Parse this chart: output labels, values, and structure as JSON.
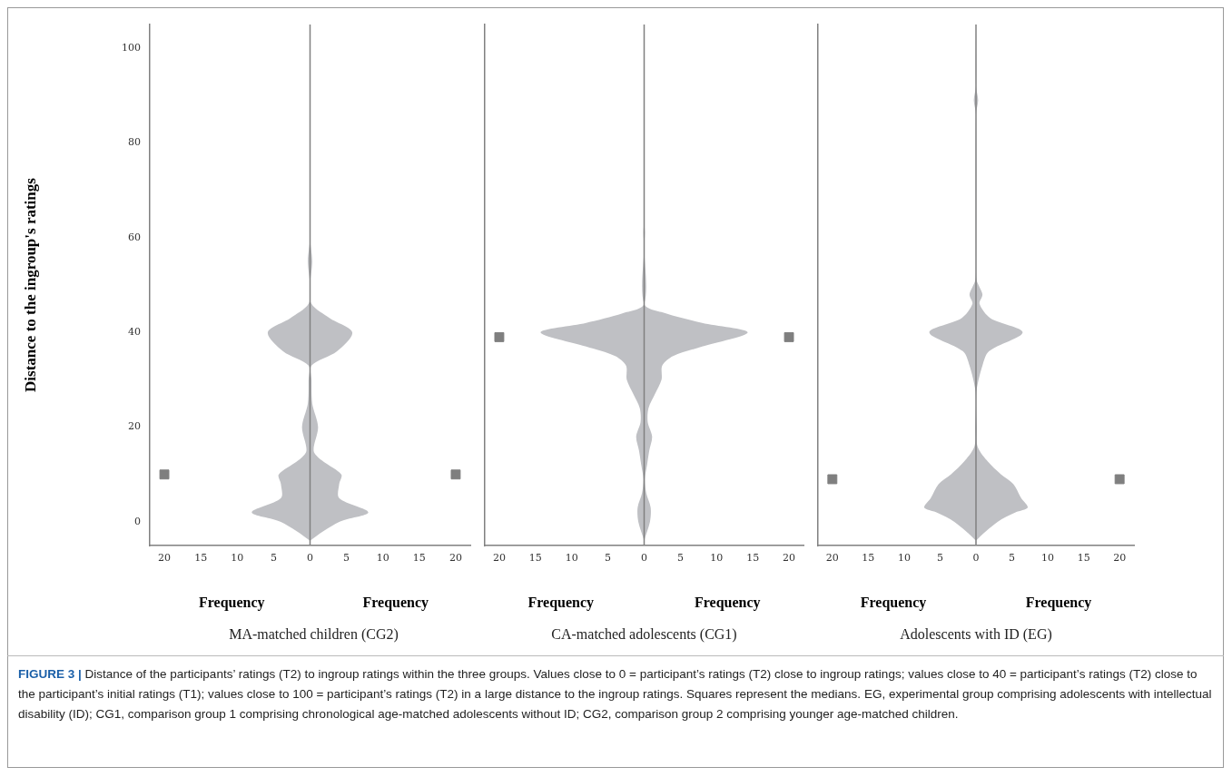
{
  "chart_data": [
    {
      "type": "line",
      "orientation": "horizontal",
      "ylabel": "Distance to the ingroup's ratings",
      "xlabel": "Frequency",
      "title": "MA-matched children (CG2)",
      "xlim": [
        -22,
        22
      ],
      "ylim": [
        -5,
        105
      ],
      "yticks": [
        0,
        20,
        40,
        60,
        80,
        100
      ],
      "xticks": [
        {
          "value": -20,
          "label": "20"
        },
        {
          "value": -15,
          "label": "15"
        },
        {
          "value": -10,
          "label": "10"
        },
        {
          "value": -5,
          "label": "5"
        },
        0,
        5,
        10,
        15,
        20
      ],
      "series": [
        {
          "color": "#808080",
          "x": [
            -5,
            -4,
            0,
            2,
            5,
            8,
            10,
            13,
            15,
            20,
            25,
            30,
            33,
            36,
            40,
            43,
            46,
            50,
            55,
            60,
            105
          ],
          "values": [
            0,
            0,
            0,
            0,
            0,
            0,
            0,
            0,
            0,
            0,
            0,
            0,
            0,
            0,
            0,
            0,
            0,
            0,
            0,
            0,
            0
          ],
          "lower": [
            0,
            0,
            -4,
            -8,
            -4,
            -4,
            -4.3,
            -1.6,
            -0.5,
            -1.1,
            -0.3,
            -0.2,
            -0.2,
            -3.7,
            -5.8,
            -2.7,
            -0.2,
            0,
            -0.3,
            0,
            0
          ],
          "upper": [
            0,
            0,
            4,
            8,
            4,
            4,
            4.3,
            1.6,
            0.5,
            1.1,
            0.3,
            0.2,
            0.2,
            3.7,
            5.8,
            2.7,
            0.2,
            0,
            0.3,
            0,
            0
          ]
        },
        {
          "type": "scatter",
          "color": "#7f7f7f",
          "marker": "square",
          "x": [
            10,
            10
          ],
          "values": [
            -20,
            20
          ]
        }
      ],
      "annotations": [
        "FIGURE 3 | Distance of the participants’ ratings (T2) to ingroup ratings within the three groups. Values close to 0 = participant’s ratings (T2) close to ingroup ratings; values close to 40 = participant’s ratings (T2) close to the participant’s initial ratings (T1); values close to 100 = participant’s ratings (T2) in a large distance to the ingroup ratings. Squares represent the medians. EG, experimental group comprising adolescents with intellectual disability (ID); CG1, comparison group 1 comprising chronological age-matched adolescents without ID; CG2, comparison group 2 comprising younger age-matched children."
      ]
    },
    {
      "type": "line",
      "orientation": "horizontal",
      "xlabel": "Frequency",
      "title": "CA-matched adolescents (CG1)",
      "tick_labels": "x",
      "xlim": [
        -22,
        22
      ],
      "ylim": [
        -5,
        105
      ],
      "yticks": [
        0,
        20,
        40,
        60,
        80,
        100
      ],
      "xticks": [
        {
          "value": -20,
          "label": "20"
        },
        {
          "value": -15,
          "label": "15"
        },
        {
          "value": -10,
          "label": "10"
        },
        {
          "value": -5,
          "label": "5"
        },
        0,
        5,
        10,
        15,
        20
      ],
      "series": [
        {
          "color": "#808080",
          "x": [
            -5,
            -4,
            0,
            3,
            6,
            9,
            12,
            15,
            18,
            21,
            24,
            27,
            30,
            33,
            35,
            37,
            40,
            42,
            44,
            46,
            58,
            61,
            64,
            105
          ],
          "values": [
            0,
            0,
            0,
            0,
            0,
            0,
            0,
            0,
            0,
            0,
            0,
            0,
            0,
            0,
            0,
            0,
            0,
            0,
            0,
            0,
            0,
            0,
            0,
            0
          ],
          "lower": [
            0,
            0,
            -0.8,
            -0.9,
            -0.3,
            -0.1,
            -0.4,
            -0.7,
            -1.1,
            -0.5,
            -0.6,
            -1.5,
            -2.4,
            -2.5,
            -4,
            -8,
            -14.3,
            -8,
            -3,
            0,
            0,
            -0.1,
            0,
            0
          ],
          "upper": [
            0,
            0,
            0.8,
            0.9,
            0.3,
            0.1,
            0.4,
            0.7,
            1.1,
            0.5,
            0.6,
            1.5,
            2.4,
            2.5,
            4,
            8,
            14.3,
            8,
            3,
            0,
            0,
            0.1,
            0,
            0
          ]
        },
        {
          "type": "scatter",
          "color": "#7f7f7f",
          "marker": "square",
          "x": [
            39,
            39
          ],
          "values": [
            -20,
            20
          ]
        }
      ]
    },
    {
      "type": "line",
      "orientation": "horizontal",
      "xlabel": "Frequency",
      "title": "Adolescents with ID (EG)",
      "tick_labels": "x",
      "xlim": [
        -22,
        22
      ],
      "ylim": [
        -5,
        105
      ],
      "yticks": [
        0,
        20,
        40,
        60,
        80,
        100
      ],
      "xticks": [
        {
          "value": -20,
          "label": "20"
        },
        {
          "value": -15,
          "label": "15"
        },
        {
          "value": -10,
          "label": "10"
        },
        {
          "value": -5,
          "label": "5"
        },
        0,
        5,
        10,
        15,
        20
      ],
      "series": [
        {
          "color": "#808080",
          "x": [
            -5,
            -4,
            0,
            2,
            3,
            5,
            8,
            10,
            13,
            16,
            20,
            25,
            28,
            33,
            36,
            40,
            43,
            46,
            48,
            51,
            55,
            86,
            89,
            92,
            105
          ],
          "values": [
            0,
            0,
            0,
            0,
            0,
            0,
            0,
            0,
            0,
            0,
            0,
            0,
            0,
            0,
            0,
            0,
            0,
            0,
            0,
            0,
            0,
            0,
            0,
            0,
            0
          ],
          "lower": [
            0,
            0,
            -3,
            -5.5,
            -7.2,
            -6.3,
            -5.2,
            -3.5,
            -1.5,
            -0.2,
            -0.1,
            0,
            -0.1,
            -0.9,
            -1.8,
            -6.5,
            -2,
            -0.5,
            -0.9,
            -0.1,
            0,
            0,
            -0.3,
            0,
            0
          ],
          "upper": [
            0,
            0,
            3,
            5.5,
            7.2,
            6.3,
            5.2,
            3.5,
            1.5,
            0.2,
            0.1,
            0,
            0.1,
            0.9,
            1.8,
            6.5,
            2,
            0.5,
            0.9,
            0.1,
            0,
            0,
            0.3,
            0,
            0
          ]
        },
        {
          "type": "scatter",
          "color": "#7f7f7f",
          "marker": "square",
          "x": [
            9,
            9
          ],
          "values": [
            -20,
            20
          ]
        }
      ]
    }
  ]
}
